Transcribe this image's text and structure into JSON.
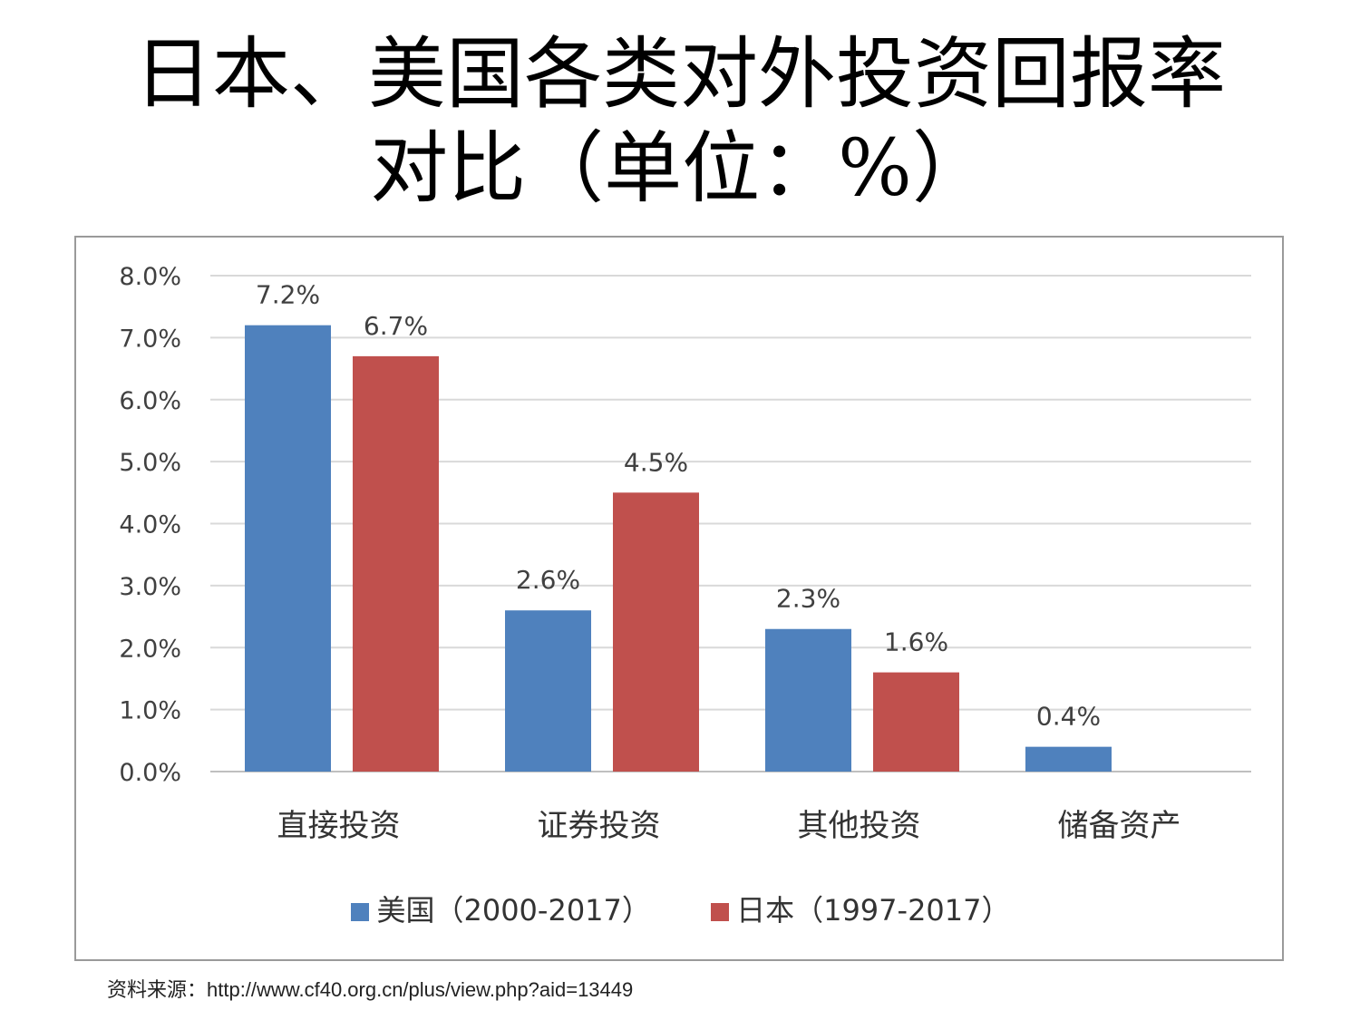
{
  "title": {
    "line1": "日本、美国各类对外投资回报率",
    "line2": "对比（单位：%）"
  },
  "source_note": "资料来源：http://www.cf40.org.cn/plus/view.php?aid=13449",
  "colors": {
    "us": "#4f81bd",
    "japan": "#c0504d",
    "grid": "#d9d9d9",
    "axis": "#bfbfbf"
  },
  "chart_data": {
    "type": "bar",
    "categories": [
      "直接投资",
      "证券投资",
      "其他投资",
      "储备资产"
    ],
    "series": [
      {
        "name": "美国（2000-2017）",
        "color": "#4f81bd",
        "values": [
          7.2,
          2.6,
          2.3,
          0.4
        ],
        "labels": [
          "7.2%",
          "2.6%",
          "2.3%",
          "0.4%"
        ]
      },
      {
        "name": "日本（1997-2017）",
        "color": "#c0504d",
        "values": [
          6.7,
          4.5,
          1.6,
          null
        ],
        "labels": [
          "6.7%",
          "4.5%",
          "1.6%",
          null
        ]
      }
    ],
    "ylim": [
      0,
      8
    ],
    "yticks": [
      "0.0%",
      "1.0%",
      "2.0%",
      "3.0%",
      "4.0%",
      "5.0%",
      "6.0%",
      "7.0%",
      "8.0%"
    ],
    "grid": true,
    "legend": "bottom"
  }
}
